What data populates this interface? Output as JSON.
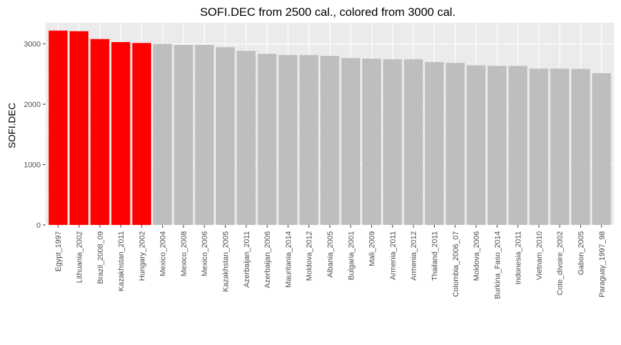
{
  "chart_data": {
    "type": "bar",
    "title": "SOFI.DEC from 2500 cal., colored from 3000 cal.",
    "xlabel": "",
    "ylabel": "SOFI.DEC",
    "ylim": [
      0,
      3350
    ],
    "yticks": [
      0,
      1000,
      2000,
      3000
    ],
    "grid": true,
    "highlight_threshold": 3000,
    "colors": {
      "highlight": "#ff0000",
      "default": "#bebebe",
      "panel": "#ebebeb",
      "gridline": "#ffffff"
    },
    "categories": [
      "Egypt_1997",
      "Lithuania_2002",
      "Brazil_2008_09",
      "Kazakhstan_2011",
      "Hungary_2002",
      "Mexico_2004",
      "Mexico_2008",
      "Mexico_2006",
      "Kazakhstan_2005",
      "Azerbaijan_2011",
      "Azerbaijan_2006",
      "Mauritania_2014",
      "Moldova_2012",
      "Albania_2005",
      "Bulgaria_2001",
      "Mali_2009",
      "Armenia_2011",
      "Armenia_2012",
      "Thailand_2011",
      "Colombia_2006_07",
      "Moldova_2006",
      "Burkina_Faso_2014",
      "Indonesia_2011",
      "Vietnam_2010",
      "Cote_dIvoire_2002",
      "Gabon_2005",
      "Paraguay_1997_98"
    ],
    "values": [
      3220,
      3210,
      3080,
      3030,
      3015,
      3000,
      2985,
      2985,
      2945,
      2885,
      2835,
      2815,
      2815,
      2800,
      2765,
      2755,
      2745,
      2745,
      2700,
      2685,
      2645,
      2635,
      2635,
      2590,
      2590,
      2585,
      2515
    ],
    "highlighted": [
      true,
      true,
      true,
      true,
      true,
      false,
      false,
      false,
      false,
      false,
      false,
      false,
      false,
      false,
      false,
      false,
      false,
      false,
      false,
      false,
      false,
      false,
      false,
      false,
      false,
      false,
      false
    ]
  }
}
